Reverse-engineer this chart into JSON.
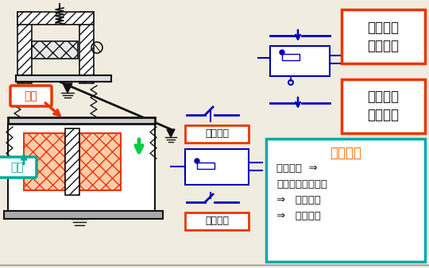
{
  "bg_color": "#f0ece0",
  "label_衔铁": "衔铁",
  "label_线圈": "线圈",
  "label_常闭触头_mid": "常闭触头",
  "label_常开触头_mid": "常开触头",
  "label_常开触头_top_l1": "常开触头",
  "label_常开触头_top_l2": "延时闭合",
  "label_常闭触头_top_l1": "常闭触头",
  "label_常闭触头_top_l2": "延时打开",
  "label_动作过程": "动作过程",
  "text_line1": "线圈通电  ⇒",
  "text_line2": "衔铁吸合（向下）",
  "text_line3": "⇒   连杆动作",
  "text_line4": "⇒   触头动作",
  "color_red_box": "#ee3300",
  "color_teal_box": "#00aaaa",
  "color_blue_line": "#0000bb",
  "color_orange_label": "#ff6600",
  "color_teal_label": "#00aa99",
  "color_red_label": "#ee3300",
  "color_green_arrow": "#00cc44",
  "color_black": "#111111"
}
